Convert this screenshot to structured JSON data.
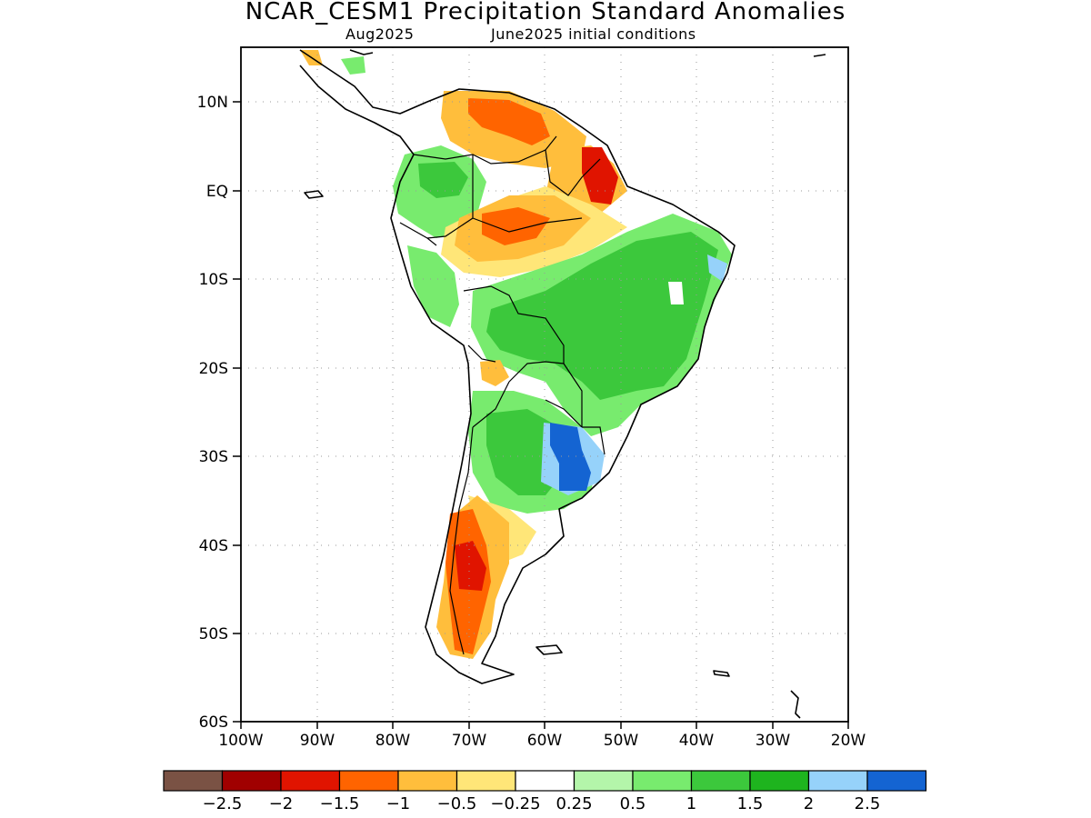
{
  "header": {
    "title": "NCAR_CESM1 Precipitation Standard Anomalies",
    "target_month": "Aug2025",
    "initial_conditions": "June2025 initial conditions"
  },
  "map": {
    "region": "South America",
    "lat_range": [
      -60,
      15
    ],
    "lon_range": [
      -100,
      -20
    ],
    "lat_ticks": [
      "10N",
      "EQ",
      "10S",
      "20S",
      "30S",
      "40S",
      "50S",
      "60S"
    ],
    "lon_ticks": [
      "100W",
      "90W",
      "80W",
      "70W",
      "60W",
      "50W",
      "40W",
      "30W",
      "20W"
    ],
    "grid": "dotted",
    "anomaly_regions": [
      {
        "area": "Northern Venezuela / Colombia coast",
        "category": "-1 to -1.5"
      },
      {
        "area": "Eastern Amazon / French Guiana",
        "category": "-1.5 to -2"
      },
      {
        "area": "Central Amazon",
        "category": "-0.5 to -1"
      },
      {
        "area": "Eastern Brazil",
        "category": "1 to 1.5"
      },
      {
        "area": "Uruguay / NE Argentina",
        "category": "2.5 and above"
      },
      {
        "area": "Southern Chile / Patagonia",
        "category": "-1.5 to -2"
      }
    ]
  },
  "colorbar": {
    "colors": [
      "#7a5244",
      "#a00000",
      "#e01400",
      "#ff6400",
      "#ffbe3c",
      "#ffe678",
      "#ffffff",
      "#b4f5aa",
      "#78eb6e",
      "#3cc83c",
      "#1eb41e",
      "#96d2fa",
      "#1464d2"
    ],
    "labels": [
      "-2.5",
      "-2",
      "-1.5",
      "-1",
      "-0.5",
      "-0.25",
      "0.25",
      "0.5",
      "1",
      "1.5",
      "2",
      "2.5"
    ]
  }
}
